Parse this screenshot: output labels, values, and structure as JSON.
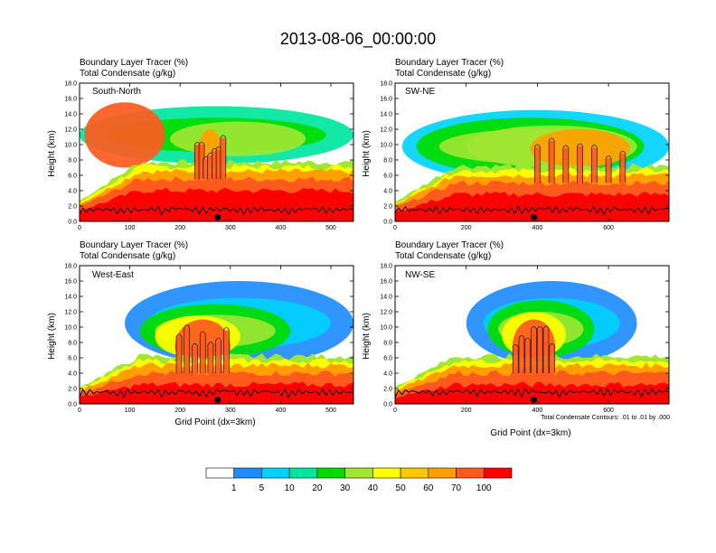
{
  "figure_title": "2013-08-06_00:00:00",
  "colors": {
    "levels": [
      "#ffffff",
      "#1e8cff",
      "#00d2ff",
      "#00e6a0",
      "#00dc00",
      "#a0e632",
      "#ffff00",
      "#ffc800",
      "#ffa000",
      "#ff5a1e",
      "#ff0000"
    ],
    "contour": "#000000",
    "terrain": "#000000"
  },
  "colorbar": {
    "labels": [
      "1",
      "5",
      "10",
      "20",
      "30",
      "40",
      "50",
      "60",
      "70",
      "100"
    ]
  },
  "contour_note": "Total Condensate Contours: .01 to .01 by .000",
  "chart_data": [
    {
      "type": "heatmap",
      "title": "South-North",
      "subtitle_1": "Boundary Layer Tracer    (%)",
      "subtitle_2": "Total Condensate    (g/kg)",
      "xlabel": "",
      "ylabel": "Height (km)",
      "xlim": [
        0,
        545
      ],
      "ylim": [
        0,
        18
      ],
      "xticks": [
        "0",
        "100",
        "200",
        "300",
        "400",
        "500"
      ],
      "xtick_values": [
        0,
        100,
        200,
        300,
        400,
        500
      ],
      "yticks": [
        "0.0",
        "2.0",
        "4.0",
        "6.0",
        "8.0",
        "10.0",
        "12.0",
        "14.0",
        "16.0",
        "18.0"
      ],
      "marker_x": 275,
      "pbl_top_km": 6.5,
      "cloud_regions": [
        {
          "x": [
            0,
            545
          ],
          "y": [
            7.5,
            15.0
          ],
          "level": 3
        },
        {
          "x": [
            180,
            450
          ],
          "y": [
            8.5,
            13.0
          ],
          "level": 5
        },
        {
          "x": [
            10,
            170
          ],
          "y": [
            7.0,
            15.5
          ],
          "level": 9
        },
        {
          "x": [
            230,
            290
          ],
          "y": [
            2.0,
            12.0
          ],
          "level": 8
        }
      ]
    },
    {
      "type": "heatmap",
      "title": "SW-NE",
      "subtitle_1": "Boundary Layer Tracer    (%)",
      "subtitle_2": "Total Condensate    (g/kg)",
      "xlabel": "",
      "ylabel": "Height (km)",
      "xlim": [
        0,
        770
      ],
      "ylim": [
        0,
        18
      ],
      "xticks": [
        "0",
        "200",
        "400",
        "600"
      ],
      "xtick_values": [
        0,
        200,
        400,
        600
      ],
      "yticks": [
        "0.0",
        "2.0",
        "4.0",
        "6.0",
        "8.0",
        "10.0",
        "12.0",
        "14.0",
        "16.0",
        "18.0"
      ],
      "marker_x": 390,
      "pbl_top_km": 6.0,
      "cloud_regions": [
        {
          "x": [
            20,
            770
          ],
          "y": [
            5.0,
            14.5
          ],
          "level": 2
        },
        {
          "x": [
            60,
            700
          ],
          "y": [
            6.0,
            13.5
          ],
          "level": 4
        },
        {
          "x": [
            200,
            680
          ],
          "y": [
            7.0,
            12.5
          ],
          "level": 5
        },
        {
          "x": [
            380,
            660
          ],
          "y": [
            7.0,
            12.0
          ],
          "level": 8
        }
      ]
    },
    {
      "type": "heatmap",
      "title": "West-East",
      "subtitle_1": "Boundary Layer Tracer    (%)",
      "subtitle_2": "Total Condensate    (g/kg)",
      "xlabel": "Grid Point (dx=3km)",
      "ylabel": "Height (km)",
      "xlim": [
        0,
        545
      ],
      "ylim": [
        0,
        18
      ],
      "xticks": [
        "0",
        "100",
        "200",
        "300",
        "400",
        "500"
      ],
      "xtick_values": [
        0,
        100,
        200,
        300,
        400,
        500
      ],
      "yticks": [
        "0.0",
        "2.0",
        "4.0",
        "6.0",
        "8.0",
        "10.0",
        "12.0",
        "14.0",
        "16.0",
        "18.0"
      ],
      "marker_x": 275,
      "pbl_top_km": 5.0,
      "cloud_regions": [
        {
          "x": [
            90,
            545
          ],
          "y": [
            5.0,
            16.0
          ],
          "level": 1
        },
        {
          "x": [
            120,
            420
          ],
          "y": [
            6.0,
            13.0
          ],
          "level": 4
        },
        {
          "x": [
            150,
            320
          ],
          "y": [
            6.0,
            11.5
          ],
          "level": 6
        },
        {
          "x": [
            190,
            300
          ],
          "y": [
            4.0,
            11.0
          ],
          "level": 9
        }
      ]
    },
    {
      "type": "heatmap",
      "title": "NW-SE",
      "subtitle_1": "Boundary Layer Tracer    (%)",
      "subtitle_2": "Total Condensate    (g/kg)",
      "xlabel": "Grid Point (dx=3km)",
      "ylabel": "Height (km)",
      "xlim": [
        0,
        770
      ],
      "ylim": [
        0,
        18
      ],
      "xticks": [
        "0",
        "200",
        "400",
        "600"
      ],
      "xtick_values": [
        0,
        200,
        400,
        600
      ],
      "yticks": [
        "0.0",
        "2.0",
        "4.0",
        "6.0",
        "8.0",
        "10.0",
        "12.0",
        "14.0",
        "16.0",
        "18.0"
      ],
      "marker_x": 390,
      "pbl_top_km": 5.0,
      "cloud_regions": [
        {
          "x": [
            200,
            680
          ],
          "y": [
            5.0,
            16.0
          ],
          "level": 1
        },
        {
          "x": [
            260,
            560
          ],
          "y": [
            6.0,
            13.5
          ],
          "level": 4
        },
        {
          "x": [
            300,
            480
          ],
          "y": [
            6.0,
            12.0
          ],
          "level": 6
        },
        {
          "x": [
            330,
            450
          ],
          "y": [
            4.0,
            11.0
          ],
          "level": 9
        }
      ]
    }
  ]
}
